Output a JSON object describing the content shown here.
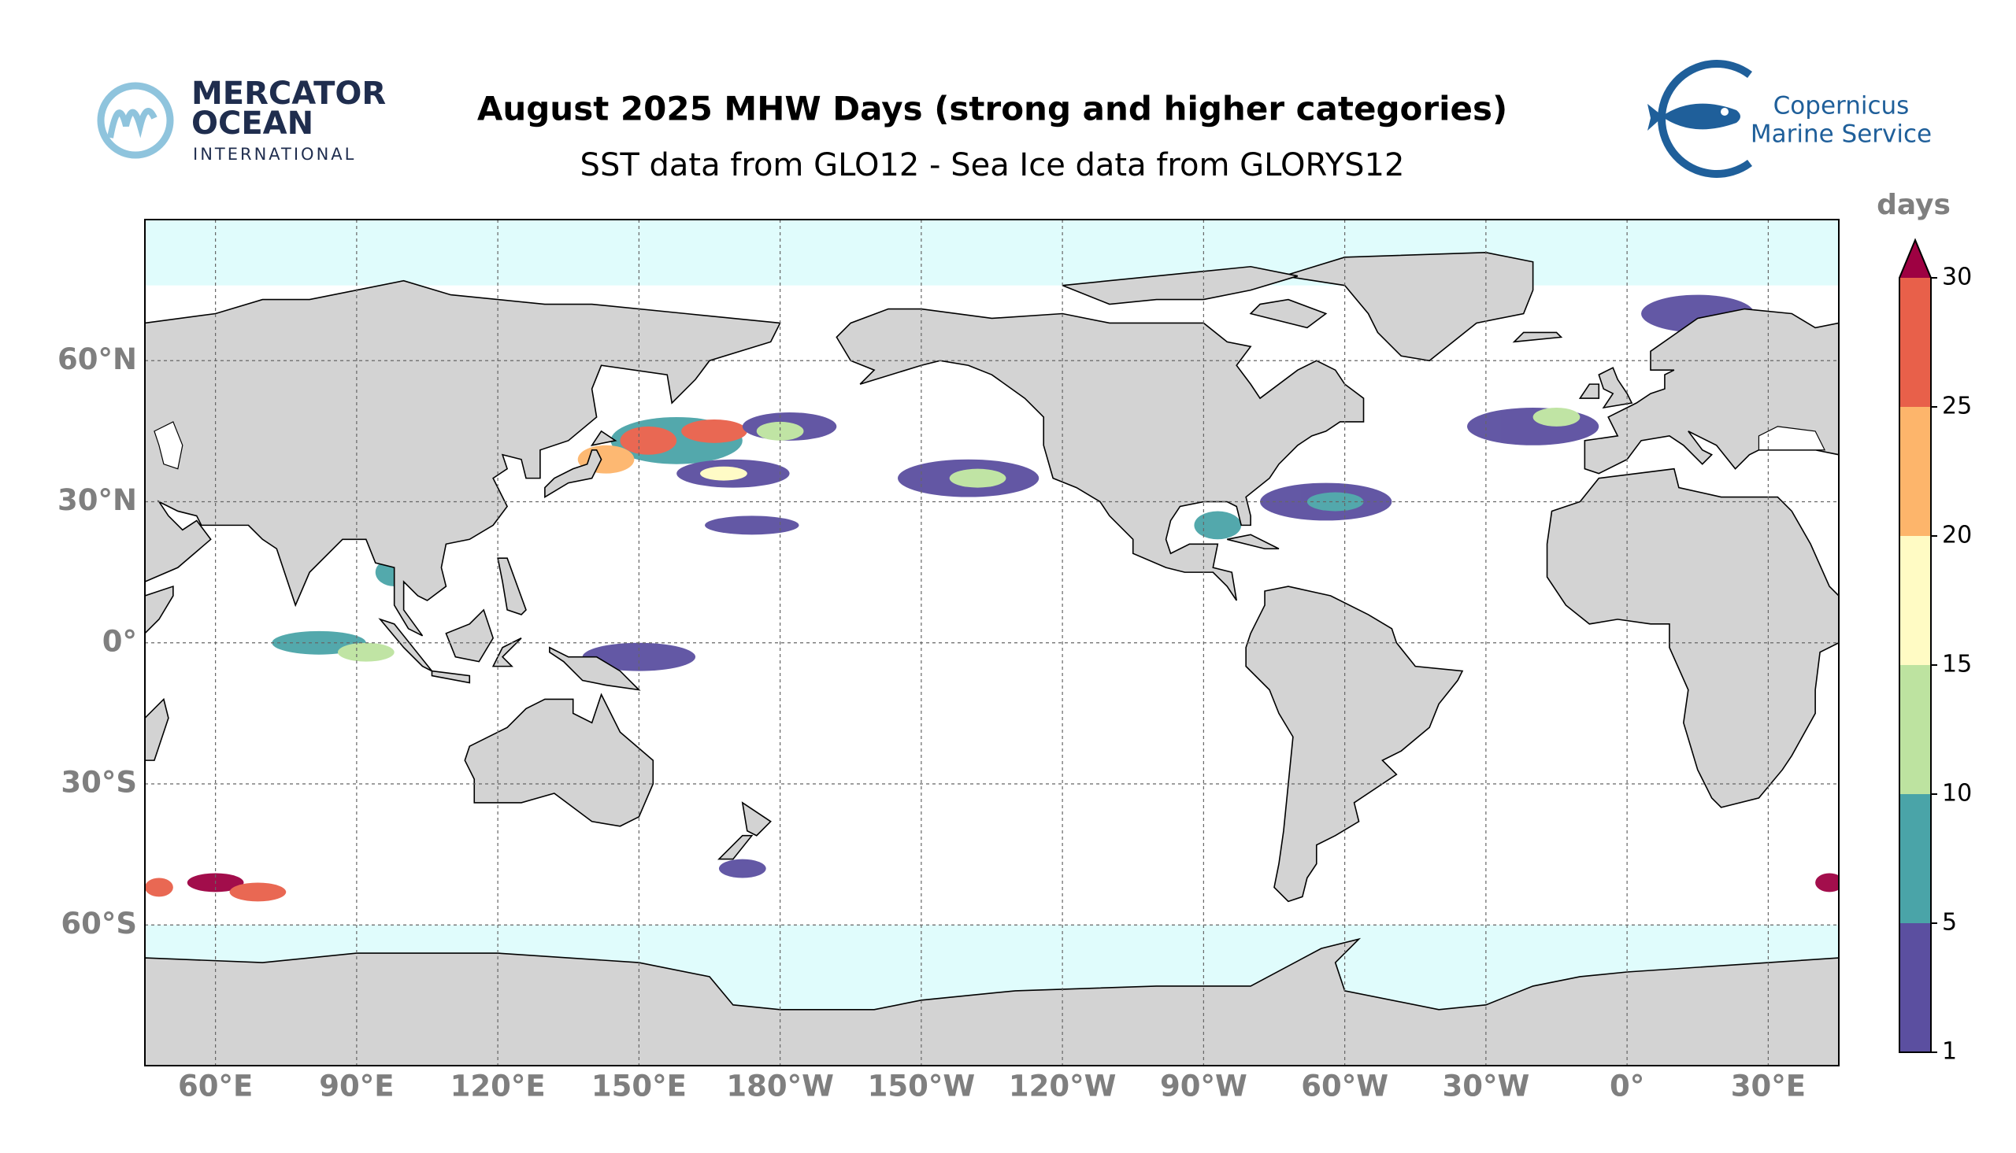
{
  "header": {
    "title": "August 2025 MHW Days (strong and higher categories)",
    "subtitle": "SST data from GLO12 - Sea Ice data from GLORYS12"
  },
  "logos": {
    "left": [
      "MERCATOR",
      "OCEAN",
      "INTERNATIONAL"
    ],
    "right": [
      "Copernicus",
      "Marine Service"
    ]
  },
  "map": {
    "lon_labels": [
      "60°E",
      "90°E",
      "120°E",
      "150°E",
      "180°W",
      "150°W",
      "120°W",
      "90°W",
      "60°W",
      "30°W",
      "0°",
      "30°E"
    ],
    "lat_labels": [
      "60°N",
      "30°N",
      "0°",
      "30°S",
      "60°S"
    ]
  },
  "colorbar": {
    "label": "days",
    "ticks": [
      1,
      5,
      10,
      15,
      20,
      25,
      30
    ],
    "colors": [
      "#5b4fa0",
      "#4aa4a8",
      "#bde3a0",
      "#fffbc4",
      "#fdb56b",
      "#e8604a"
    ],
    "extend_color": "#9e0142"
  }
}
